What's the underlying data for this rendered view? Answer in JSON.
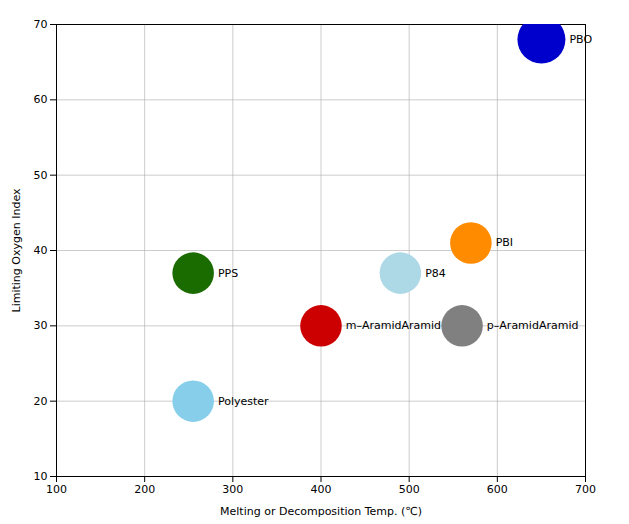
{
  "chart_data": {
    "type": "scatter",
    "labels": [
      "PBO",
      "PBI",
      "PPS",
      "P84",
      "m–AramidAramid",
      "p–AramidAramid",
      "Polyester"
    ],
    "x": [
      650,
      570,
      255,
      490,
      400,
      560,
      255
    ],
    "values": [
      68,
      41,
      37,
      37,
      30,
      30,
      20
    ],
    "sizes": [
      1200,
      900,
      900,
      900,
      900,
      900,
      900
    ],
    "colors": [
      "#0000CC",
      "#FF8C00",
      "#1A6B00",
      "#ADD8E6",
      "#CC0000",
      "#808080",
      "#87CEEB"
    ],
    "xlabel": "Melting or Decomposition Temp. (℃)",
    "ylabel": "Limiting Oxygen Index",
    "xlim": [
      100,
      700
    ],
    "ylim": [
      10,
      70
    ],
    "xticks": [
      100,
      200,
      300,
      400,
      500,
      600,
      700
    ],
    "yticks": [
      10,
      20,
      30,
      40,
      50,
      60,
      70
    ],
    "grid": true
  }
}
